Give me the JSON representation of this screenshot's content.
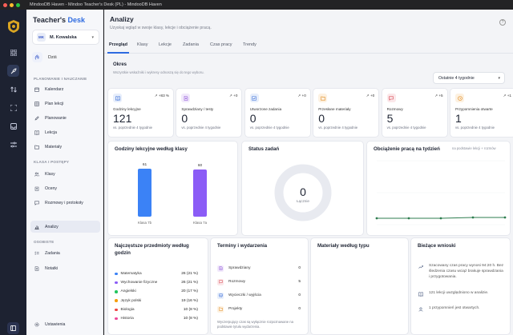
{
  "window": {
    "title": "MindooDB Haven - Mindoo Teacher's Desk (PL) - MindooDB Haven"
  },
  "brand": {
    "part1": "Teacher's",
    "part2": "Desk"
  },
  "user": {
    "initials": "MK",
    "name": "M. Kowalska"
  },
  "sidebar": {
    "today": "Dziś",
    "sections": [
      {
        "title": "PLANOWANIE I NAUCZANIE",
        "items": [
          {
            "label": "Kalendarz",
            "icon": "calendar-icon"
          },
          {
            "label": "Plan lekcji",
            "icon": "schedule-icon"
          },
          {
            "label": "Planowanie",
            "icon": "pencil-icon"
          },
          {
            "label": "Lekcja",
            "icon": "book-icon"
          },
          {
            "label": "Materiały",
            "icon": "folder-icon"
          }
        ]
      },
      {
        "title": "KLASA I POSTĘPY",
        "items": [
          {
            "label": "Klasy",
            "icon": "users-icon"
          },
          {
            "label": "Oceny",
            "icon": "grades-icon"
          },
          {
            "label": "Rozmowy i protokoły",
            "icon": "chat-icon"
          },
          {
            "label": "Analizy",
            "icon": "chart-icon"
          }
        ]
      },
      {
        "title": "OSOBISTE",
        "items": [
          {
            "label": "Zadania",
            "icon": "checklist-icon"
          },
          {
            "label": "Notatki",
            "icon": "note-icon"
          }
        ]
      }
    ],
    "settings": "Ustawienia"
  },
  "header": {
    "title": "Analizy",
    "subtitle": "Uzyskaj wgląd w swoje klasy, lekcje i obciążenie pracą."
  },
  "tabs": [
    "Przegląd",
    "Klasy",
    "Lekcje",
    "Zadania",
    "Czas pracy",
    "Trendy"
  ],
  "period": {
    "title": "Okres",
    "subtitle": "Wszystkie wskaźniki i wykresy odnoszą się do tego wyboru.",
    "selected": "Ostatnie 4 tygodnie"
  },
  "stats": [
    {
      "label": "Godziny lekcyjne",
      "value": "121",
      "trend": "+83 %",
      "foot": "vs. poprzednie 4 tygodnie",
      "color": "#3b6fd8",
      "bg": "#e7eefb",
      "icon": "book-icon"
    },
    {
      "label": "Sprawdziany / testy",
      "value": "0",
      "trend": "+0",
      "foot": "vs. poprzednie 4 tygodnie",
      "color": "#8b4fd8",
      "bg": "#f1e9fb",
      "icon": "document-icon"
    },
    {
      "label": "Utworzone zadania",
      "value": "0",
      "trend": "+0",
      "foot": "vs. poprzednie 4 tygodnie",
      "color": "#3b6fd8",
      "bg": "#e7eefb",
      "icon": "checkbox-icon"
    },
    {
      "label": "Przesłane materiały",
      "value": "0",
      "trend": "+0",
      "foot": "vs. poprzednie 4 tygodnie",
      "color": "#e08a1e",
      "bg": "#fdf1e1",
      "icon": "folder-icon"
    },
    {
      "label": "Rozmowy",
      "value": "5",
      "trend": "+5",
      "foot": "vs. poprzednie 4 tygodnie",
      "color": "#d8434f",
      "bg": "#fbe8ea",
      "icon": "chat-icon"
    },
    {
      "label": "Przypomnienia otwarte",
      "value": "1",
      "trend": "+1",
      "foot": "vs. poprzednie 4 tygodnie",
      "color": "#e08a1e",
      "bg": "#fdf1e1",
      "icon": "clock-icon"
    }
  ],
  "hours_chart": {
    "title": "Godziny lekcyjne według klasy",
    "bars": [
      {
        "label": "Klasa 7b",
        "value": 61,
        "color": "#3b82f6"
      },
      {
        "label": "Klasa 7a",
        "value": 60,
        "color": "#8b5cf6"
      }
    ]
  },
  "task_status": {
    "title": "Status zadań",
    "total": "0",
    "total_label": "Łącznie"
  },
  "workload": {
    "title": "Obciążenie pracą na tydzień",
    "note": "na podstawie lekcji + rozmów",
    "series": [
      4,
      4,
      4,
      4.5,
      4.5
    ]
  },
  "subjects": {
    "title": "Najczęstsze przedmioty według godzin",
    "items": [
      {
        "name": "Matematyka",
        "value": "26 (21 %)",
        "color": "#3b82f6"
      },
      {
        "name": "Wychowanie fizyczne",
        "value": "26 (21 %)",
        "color": "#8b5cf6"
      },
      {
        "name": "Angielski",
        "value": "20 (17 %)",
        "color": "#22c55e"
      },
      {
        "name": "Język polski",
        "value": "19 (16 %)",
        "color": "#f59e0b"
      },
      {
        "name": "Biologia",
        "value": "10 (8 %)",
        "color": "#ef4444"
      },
      {
        "name": "Historia",
        "value": "10 (8 %)",
        "color": "#ec4899"
      }
    ]
  },
  "events": {
    "title": "Terminy i wydarzenia",
    "items": [
      {
        "name": "Sprawdziany",
        "value": "0",
        "color": "#8b4fd8",
        "bg": "#f1e9fb",
        "icon": "document-icon"
      },
      {
        "name": "Rozmowy",
        "value": "5",
        "color": "#d8434f",
        "bg": "#fbe8ea",
        "icon": "chat-icon"
      },
      {
        "name": "Wycieczki / wyjścia",
        "value": "0",
        "color": "#3b6fd8",
        "bg": "#e7eefb",
        "icon": "bus-icon"
      },
      {
        "name": "Projekty",
        "value": "0",
        "color": "#e08a1e",
        "bg": "#fdf1e1",
        "icon": "folder-icon"
      }
    ],
    "note": "Wyczerpujący czas są wyłącznie rozpoznawane na podstawie tytułu wydarzenia."
  },
  "materials": {
    "title": "Materiały według typu"
  },
  "insights": {
    "title": "Bieżące wnioski",
    "items": [
      {
        "text": "Szacowany czas pracy wynosi 94:20 h. Bez śledzenia czasu wciąż brakuje sprawdzania i przygotowania.",
        "icon": "trend-icon"
      },
      {
        "text": "121 lekcji uwzględniono w analizie.",
        "icon": "book-icon"
      },
      {
        "text": "1 przypomnień jest otwartych.",
        "icon": "user-icon"
      }
    ]
  }
}
